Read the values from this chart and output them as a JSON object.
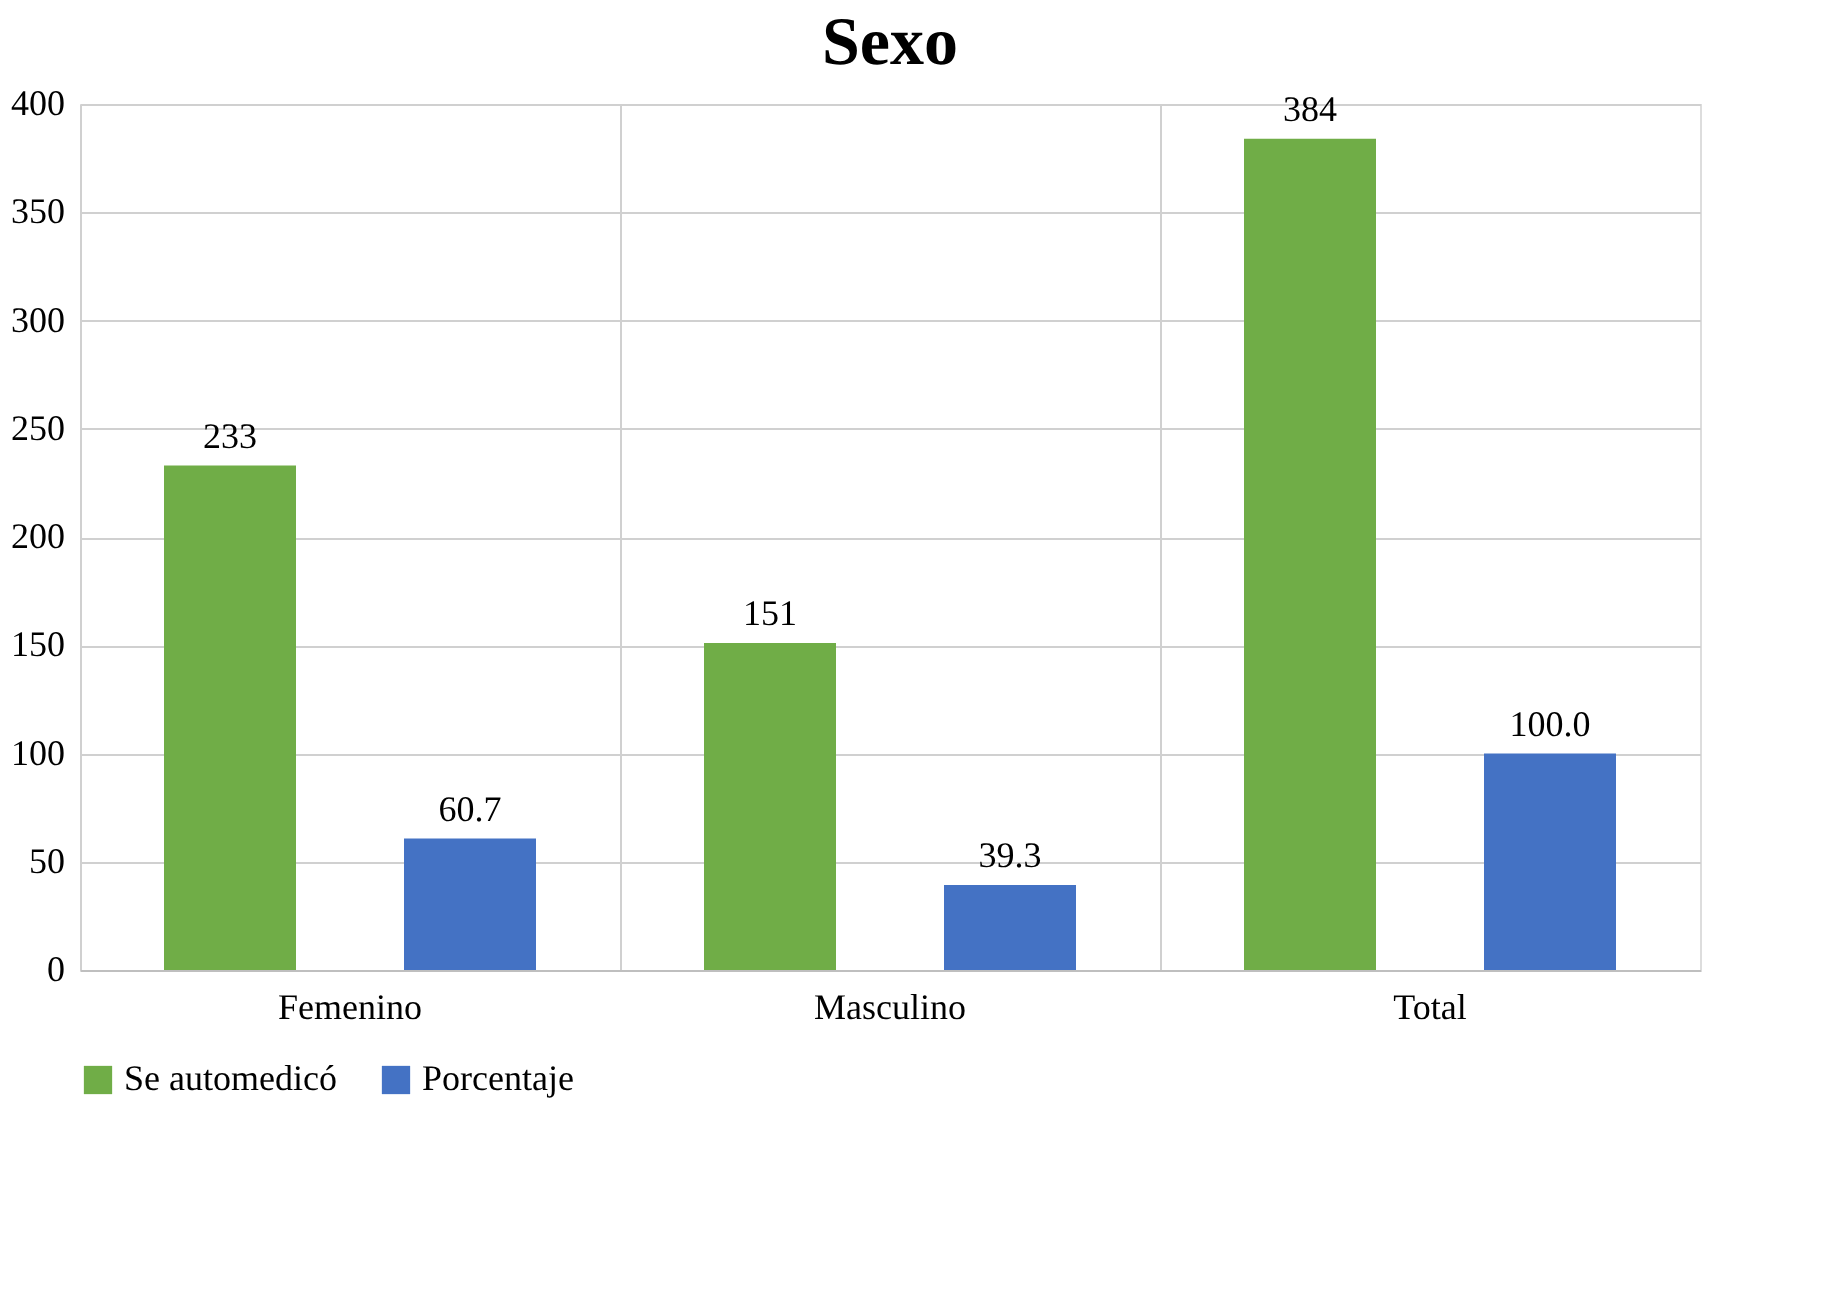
{
  "chart_data": {
    "type": "bar",
    "title": "Sexo",
    "categories": [
      "Femenino",
      "Masculino",
      "Total"
    ],
    "series": [
      {
        "name": "Se automedicó",
        "color": "#70ad47",
        "values": [
          233,
          151,
          384
        ],
        "value_labels": [
          "233",
          "151",
          "384"
        ]
      },
      {
        "name": "Porcentaje",
        "color": "#4472c4",
        "values": [
          60.7,
          39.3,
          100.0
        ],
        "value_labels": [
          "60.7",
          "39.3",
          "100.0"
        ]
      }
    ],
    "ylim": [
      0,
      400
    ],
    "yticks": [
      0,
      50,
      100,
      150,
      200,
      250,
      300,
      350,
      400
    ],
    "grid": true,
    "legend": "bottom"
  }
}
